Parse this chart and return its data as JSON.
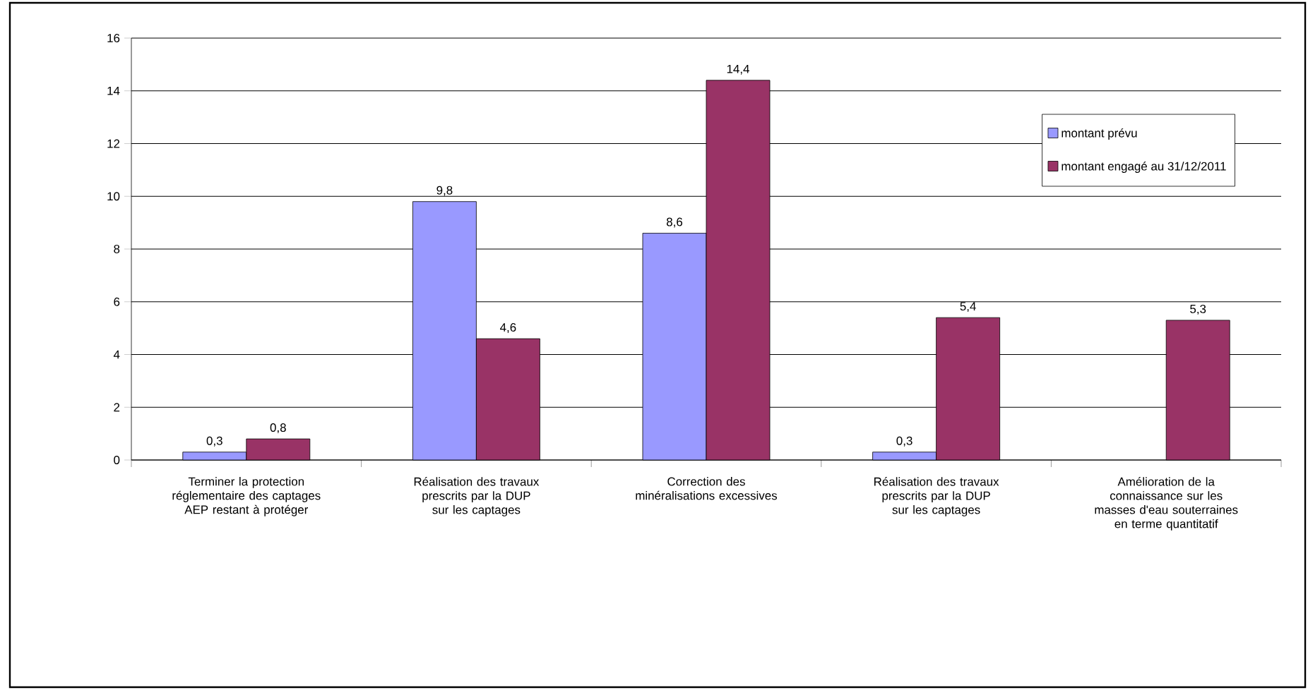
{
  "chart_data": {
    "type": "bar",
    "categories": [
      "Terminer la protection réglementaire des captages AEP restant à protéger",
      "Réalisation des travaux prescrits par la DUP sur les captages",
      "Correction des minéralisations excessives",
      "Réalisation des travaux prescrits par la DUP sur les captages",
      "Amélioration de la connaissance sur les masses d'eau souterraines en terme quantitatif"
    ],
    "series": [
      {
        "name": "montant prévu",
        "color": "#9999ff",
        "values": [
          0.3,
          9.8,
          8.6,
          0.3,
          null
        ],
        "value_labels": [
          "0,3",
          "9,8",
          "8,6",
          "0,3",
          null
        ]
      },
      {
        "name": "montant engagé au 31/12/2011",
        "color": "#993366",
        "values": [
          0.8,
          4.6,
          14.4,
          5.4,
          5.3
        ],
        "value_labels": [
          "0,8",
          "4,6",
          "14,4",
          "5,4",
          "5,3"
        ]
      }
    ],
    "ylim": [
      0,
      16
    ],
    "yticks": [
      0,
      2,
      4,
      6,
      8,
      10,
      12,
      14,
      16
    ],
    "grid": "y",
    "legend": "right"
  }
}
